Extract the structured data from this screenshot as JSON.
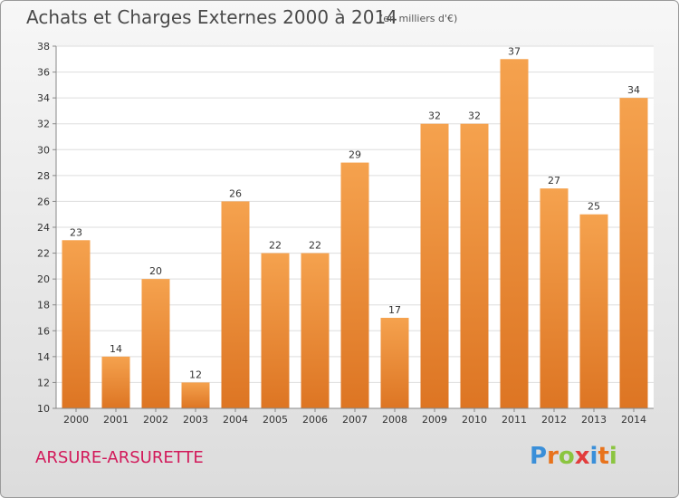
{
  "title": "Achats et Charges Externes 2000 à 2014",
  "unit_note": "(en milliers d'€)",
  "place": "ARSURE-ARSURETTE",
  "logo": {
    "text": "Proxiti",
    "letter_colors": [
      "#3a8fd9",
      "#e8731c",
      "#8bc540",
      "#e23c3c",
      "#3a8fd9",
      "#e8731c",
      "#8bc540"
    ]
  },
  "colors": {
    "bar_top": "#f5a24e",
    "bar_bottom": "#dd7523",
    "plot_bg": "#ffffff",
    "grid": "#dddddd",
    "place": "#d2195a"
  },
  "chart_data": {
    "type": "bar",
    "categories": [
      "2000",
      "2001",
      "2002",
      "2003",
      "2004",
      "2005",
      "2006",
      "2007",
      "2008",
      "2009",
      "2010",
      "2011",
      "2012",
      "2013",
      "2014"
    ],
    "values": [
      23,
      14,
      20,
      12,
      26,
      22,
      22,
      29,
      17,
      32,
      32,
      37,
      27,
      25,
      34
    ],
    "data_labels": [
      "23",
      "14",
      "20",
      "12",
      "26",
      "22",
      "22",
      "29",
      "17",
      "32",
      "32",
      "37",
      "27",
      "25",
      "34"
    ],
    "yticks": [
      "10",
      "12",
      "14",
      "16",
      "18",
      "20",
      "22",
      "24",
      "26",
      "28",
      "30",
      "32",
      "34",
      "36",
      "38"
    ],
    "ylim": [
      10,
      38
    ],
    "grid": true,
    "legend": "none"
  }
}
